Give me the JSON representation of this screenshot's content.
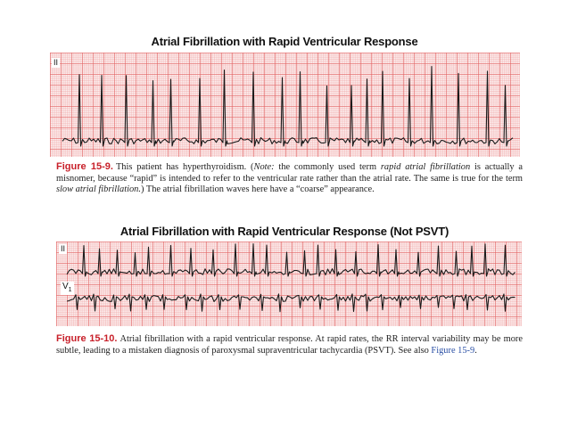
{
  "figure1": {
    "title": "Atrial Fibrillation with Rapid Ventricular Response",
    "lead": "II",
    "caption": {
      "label": "Figure 15-9.",
      "t1": "This patient has hyperthyroidism. (",
      "note": "Note:",
      "t2": " the commonly used term ",
      "term1": "rapid atrial fibrillation",
      "t3": " is actually a misnomer, because “rapid” is intended to refer to the ventricular rate rather than the atrial rate. The same is true for the term ",
      "term2": "slow atrial fibrillation.",
      "t4": ") The atrial fibrillation waves here have a “coarse” appearance."
    }
  },
  "figure2": {
    "title": "Atrial Fibrillation with Rapid Ventricular Response (Not PSVT)",
    "lead_top": "II",
    "lead_bottom_main": "V",
    "lead_bottom_sub": "1",
    "caption": {
      "label": "Figure 15-10.",
      "t1": "Atrial fibrillation with a rapid ventricular response. At rapid rates, the RR interval variability may be more subtle, leading to a mistaken diagnosis of paroxysmal supraventricular tachycardia (PSVT). See also ",
      "link": "Figure 15-9",
      "t2": "."
    }
  }
}
